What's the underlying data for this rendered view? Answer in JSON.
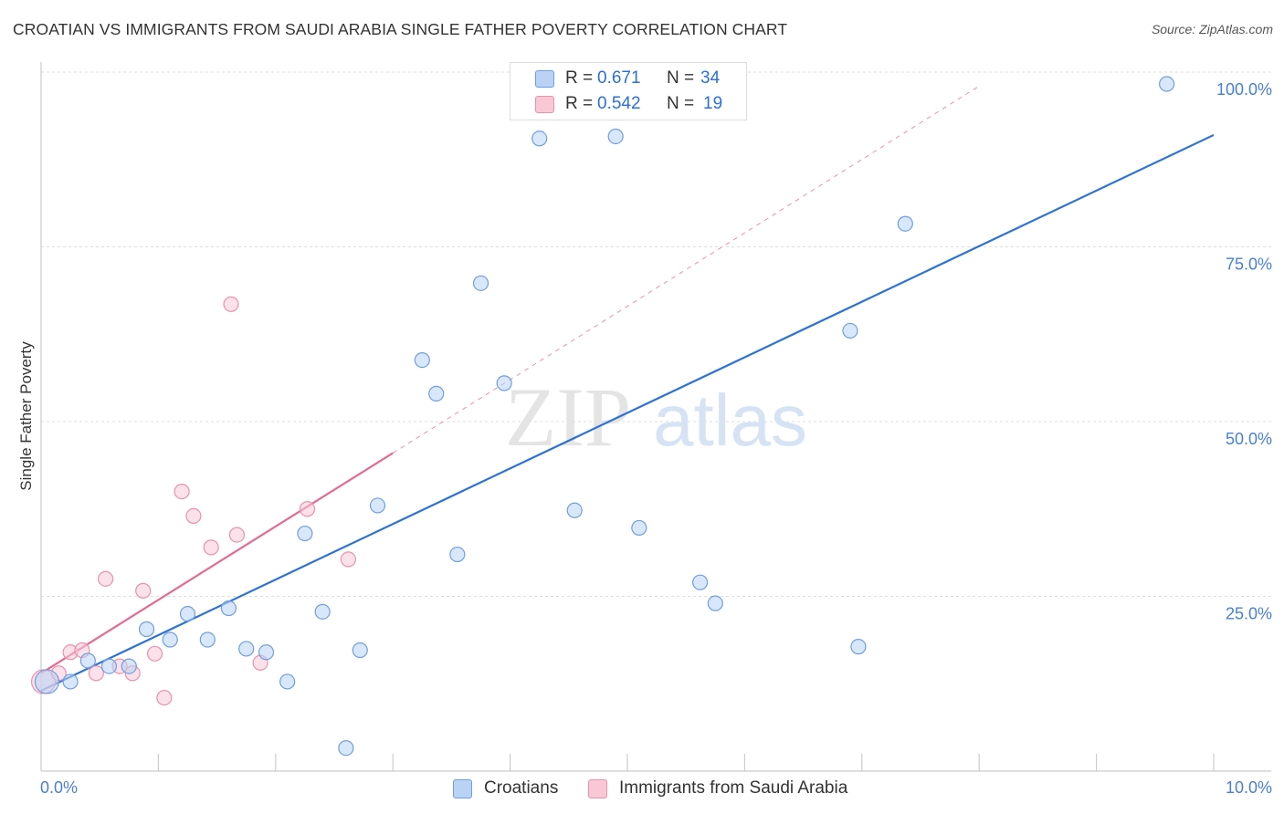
{
  "title": "CROATIAN VS IMMIGRANTS FROM SAUDI ARABIA SINGLE FATHER POVERTY CORRELATION CHART",
  "source": "Source: ZipAtlas.com",
  "watermark": {
    "zip": "ZIP",
    "atlas": "atlas"
  },
  "stats": {
    "r_label": "R =",
    "n_label": "N =",
    "croatians": {
      "r": "0.671",
      "n": "34"
    },
    "saudi": {
      "r": "0.542",
      "n": "19"
    }
  },
  "legend": {
    "croatians": "Croatians",
    "saudi": "Immigrants from Saudi Arabia"
  },
  "colors": {
    "blue_fill": "#bad3f5",
    "blue_stroke": "#6f9edf",
    "blue_line": "#2e72d2",
    "pink_fill": "#f8c8d7",
    "pink_stroke": "#e892ac",
    "pink_line": "#e26b95",
    "tick_text": "#4a7fd0",
    "grid": "#dddddd"
  },
  "chart_data": {
    "type": "scatter",
    "title": "CROATIAN VS IMMIGRANTS FROM SAUDI ARABIA SINGLE FATHER POVERTY CORRELATION CHART",
    "xlabel": "",
    "ylabel": "Single Father Poverty",
    "xlim": [
      0,
      10
    ],
    "ylim": [
      0,
      100
    ],
    "x_tick_labels": [
      "0.0%",
      "10.0%"
    ],
    "y_ticks": [
      25,
      50,
      75,
      100
    ],
    "y_tick_labels": [
      "25.0%",
      "50.0%",
      "75.0%",
      "100.0%"
    ],
    "grid": true,
    "legend_position": "bottom",
    "series": [
      {
        "name": "Croatians",
        "color": "#6f9edf",
        "points": [
          {
            "x": 0.05,
            "y": 12.8
          },
          {
            "x": 0.25,
            "y": 12.8
          },
          {
            "x": 0.4,
            "y": 15.8
          },
          {
            "x": 0.58,
            "y": 15.0
          },
          {
            "x": 0.75,
            "y": 15.0
          },
          {
            "x": 0.9,
            "y": 20.3
          },
          {
            "x": 1.1,
            "y": 18.8
          },
          {
            "x": 1.25,
            "y": 22.5
          },
          {
            "x": 1.42,
            "y": 18.8
          },
          {
            "x": 1.6,
            "y": 23.3
          },
          {
            "x": 1.75,
            "y": 17.5
          },
          {
            "x": 1.92,
            "y": 17.0
          },
          {
            "x": 2.1,
            "y": 12.8
          },
          {
            "x": 2.25,
            "y": 34.0
          },
          {
            "x": 2.4,
            "y": 22.8
          },
          {
            "x": 2.6,
            "y": 3.3
          },
          {
            "x": 2.72,
            "y": 17.3
          },
          {
            "x": 2.87,
            "y": 38.0
          },
          {
            "x": 3.25,
            "y": 58.8
          },
          {
            "x": 3.37,
            "y": 54.0
          },
          {
            "x": 3.55,
            "y": 31.0
          },
          {
            "x": 3.75,
            "y": 69.8
          },
          {
            "x": 3.95,
            "y": 55.5
          },
          {
            "x": 4.25,
            "y": 90.5
          },
          {
            "x": 4.55,
            "y": 37.3
          },
          {
            "x": 4.9,
            "y": 90.8
          },
          {
            "x": 5.1,
            "y": 34.8
          },
          {
            "x": 5.2,
            "y": 98.0
          },
          {
            "x": 5.62,
            "y": 27.0
          },
          {
            "x": 5.75,
            "y": 24.0
          },
          {
            "x": 6.9,
            "y": 63.0
          },
          {
            "x": 6.97,
            "y": 17.8
          },
          {
            "x": 7.37,
            "y": 78.3
          },
          {
            "x": 9.6,
            "y": 98.3
          }
        ],
        "trend": {
          "x": [
            0,
            10
          ],
          "y": [
            11.5,
            91.0
          ]
        }
      },
      {
        "name": "Immigrants from Saudi Arabia",
        "color": "#e892ac",
        "points": [
          {
            "x": 0.02,
            "y": 12.8
          },
          {
            "x": 0.15,
            "y": 14.0
          },
          {
            "x": 0.25,
            "y": 17.0
          },
          {
            "x": 0.35,
            "y": 17.3
          },
          {
            "x": 0.47,
            "y": 14.0
          },
          {
            "x": 0.55,
            "y": 27.5
          },
          {
            "x": 0.67,
            "y": 15.0
          },
          {
            "x": 0.78,
            "y": 14.0
          },
          {
            "x": 0.87,
            "y": 25.8
          },
          {
            "x": 0.97,
            "y": 16.8
          },
          {
            "x": 1.05,
            "y": 10.5
          },
          {
            "x": 1.2,
            "y": 40.0
          },
          {
            "x": 1.3,
            "y": 36.5
          },
          {
            "x": 1.45,
            "y": 32.0
          },
          {
            "x": 1.62,
            "y": 66.8
          },
          {
            "x": 1.67,
            "y": 33.8
          },
          {
            "x": 1.87,
            "y": 15.5
          },
          {
            "x": 2.27,
            "y": 37.5
          },
          {
            "x": 2.62,
            "y": 30.3
          }
        ],
        "trend": {
          "x": [
            0,
            3.0
          ],
          "y": [
            14.0,
            45.5
          ]
        },
        "trend_extension": {
          "x": [
            3.0,
            8.0
          ],
          "y": [
            45.5,
            98.0
          ]
        }
      }
    ]
  }
}
